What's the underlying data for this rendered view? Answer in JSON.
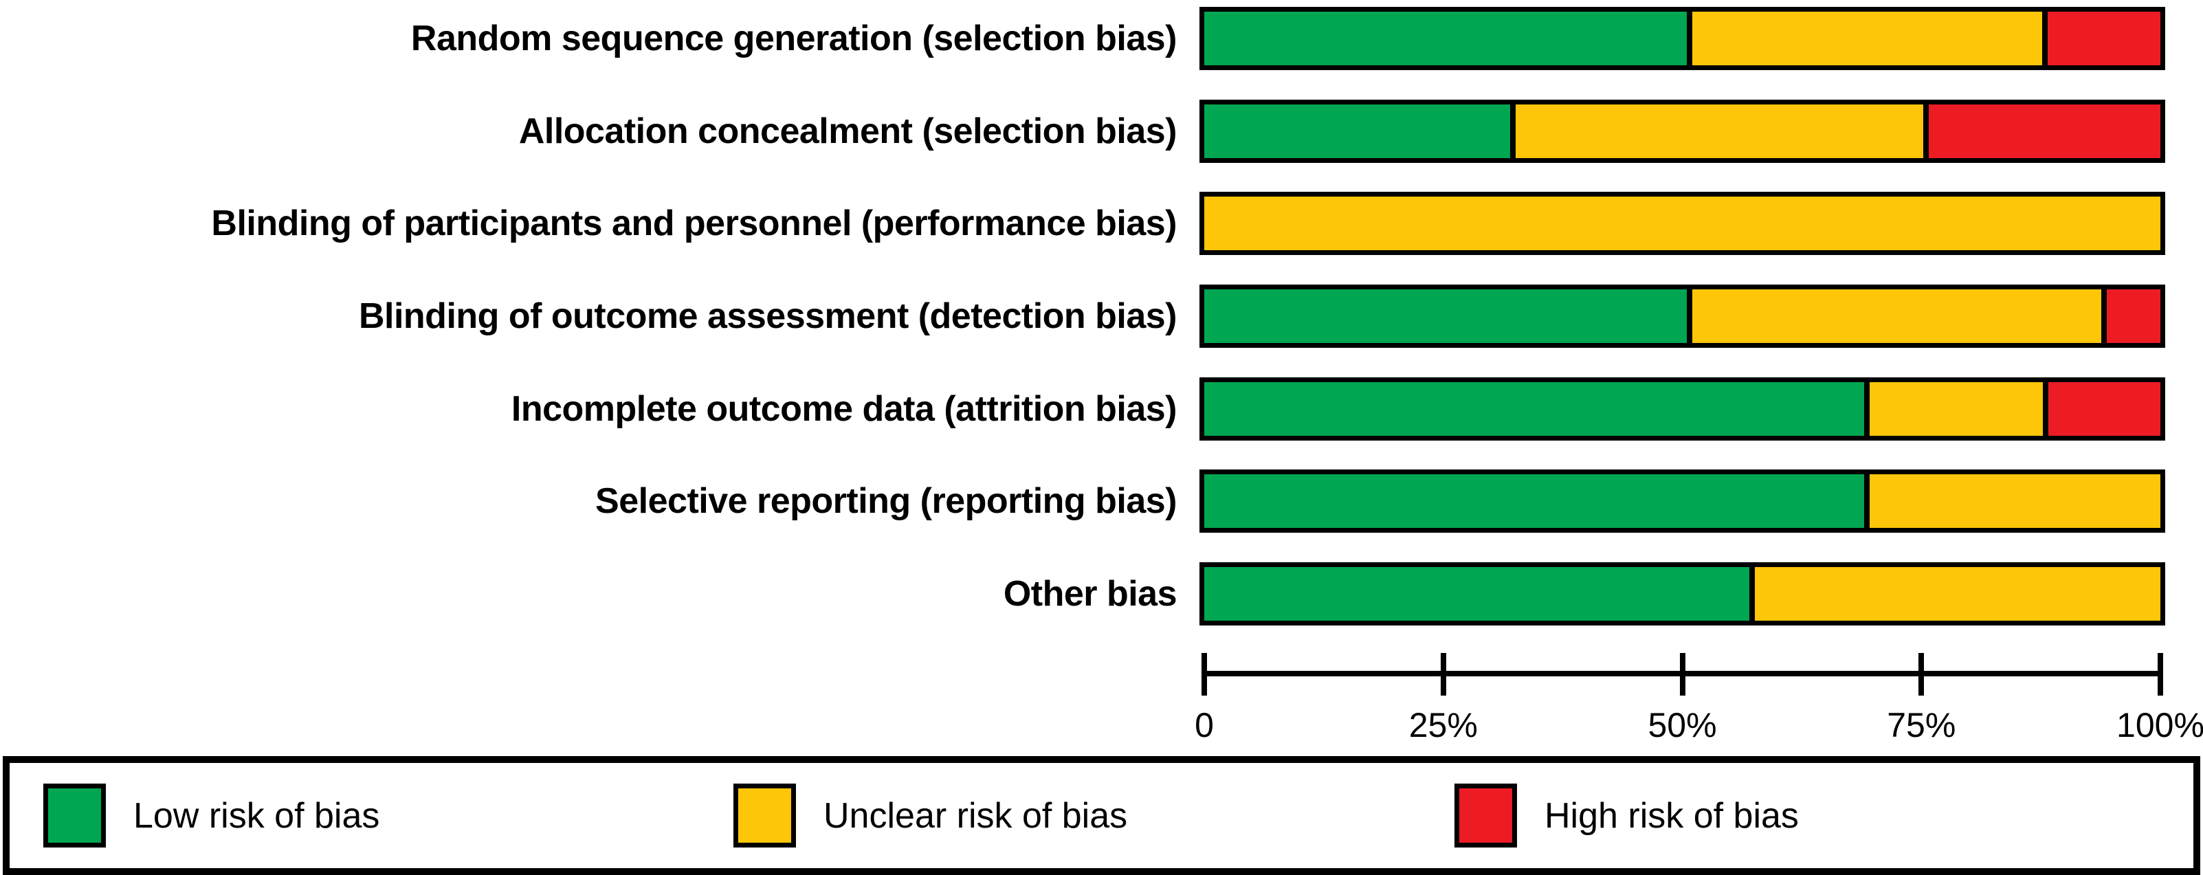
{
  "chart_data": {
    "type": "bar",
    "orientation": "horizontal",
    "stacked": true,
    "unit": "percent",
    "title": "",
    "xlabel": "",
    "ylabel": "",
    "x_axis": {
      "range": [
        0,
        100
      ],
      "tick_labels": [
        "0",
        "25%",
        "50%",
        "75%",
        "100%"
      ],
      "tick_values": [
        0,
        25,
        50,
        75,
        100
      ]
    },
    "categories": [
      "Random sequence generation (selection bias)",
      "Allocation concealment (selection bias)",
      "Blinding of participants and personnel (performance bias)",
      "Blinding of outcome assessment (detection bias)",
      "Incomplete outcome data (attrition bias)",
      "Selective reporting (reporting bias)",
      "Other bias"
    ],
    "series": [
      {
        "name": "Low risk of bias",
        "color": "#00A651",
        "values": [
          50.5,
          32.0,
          0,
          50.5,
          69.0,
          69.0,
          57.0
        ]
      },
      {
        "name": "Unclear risk of bias",
        "color": "#FEC609",
        "values": [
          37.1,
          43.2,
          100,
          43.3,
          18.7,
          31.0,
          43.0
        ]
      },
      {
        "name": "High risk of bias",
        "color": "#ED1C24",
        "values": [
          12.4,
          24.8,
          0,
          6.2,
          12.3,
          0,
          0
        ]
      }
    ],
    "legend_position": "bottom",
    "grid": false
  },
  "legend": {
    "items": [
      {
        "label": "Low risk of bias",
        "color": "#00A651",
        "key": "low"
      },
      {
        "label": "Unclear risk of bias",
        "color": "#FEC609",
        "key": "unclear"
      },
      {
        "label": "High risk of bias",
        "color": "#ED1C24",
        "key": "high"
      }
    ]
  },
  "colors": {
    "bar_border": "#000000",
    "axis": "#000000",
    "background": "#FFFFFF"
  }
}
